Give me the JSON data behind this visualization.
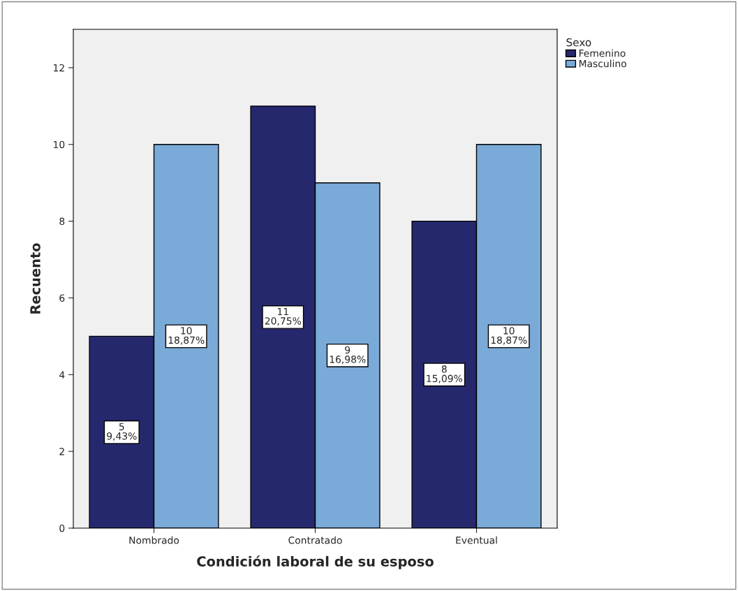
{
  "chart_data": {
    "type": "bar",
    "xlabel": "Condición laboral de su esposo",
    "ylabel": "Recuento",
    "categories": [
      "Nombrado",
      "Contratado",
      "Eventual"
    ],
    "series": [
      {
        "name": "Femenino",
        "color": "#26286e",
        "values": [
          5,
          11,
          8
        ],
        "value_labels": [
          "5\n9,43%",
          "11\n20,75%",
          "8\n15,09%"
        ]
      },
      {
        "name": "Masculino",
        "color": "#7aaad8",
        "values": [
          10,
          9,
          10
        ],
        "value_labels": [
          "10\n18,87%",
          "9\n16,98%",
          "10\n18,87%"
        ]
      }
    ],
    "legend_title": "Sexo",
    "legend": "top right",
    "ylim": [
      0,
      13
    ],
    "yticks": [
      0,
      2,
      4,
      6,
      8,
      10,
      12
    ],
    "grid": false
  }
}
